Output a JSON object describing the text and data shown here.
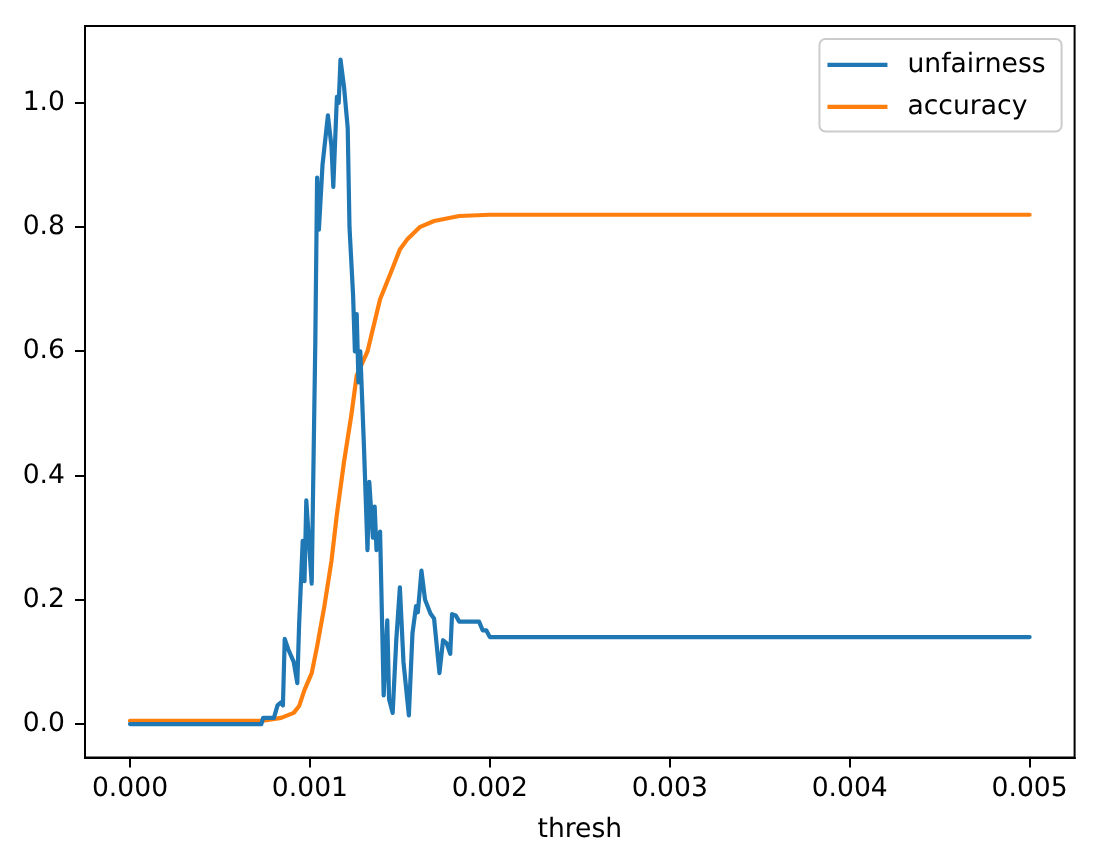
{
  "chart_data": {
    "type": "line",
    "xlabel": "thresh",
    "xlim": [
      -0.00025,
      0.00525
    ],
    "xticks": [
      {
        "value": 0,
        "label": "0.000"
      },
      {
        "value": 0.001,
        "label": "0.001"
      },
      {
        "value": 0.002,
        "label": "0.002"
      },
      {
        "value": 0.003,
        "label": "0.003"
      },
      {
        "value": 0.004,
        "label": "0.004"
      },
      {
        "value": 0.005,
        "label": "0.005"
      }
    ],
    "ylim": [
      -0.054,
      1.124
    ],
    "yticks": [
      {
        "value": 0,
        "label": "0.0"
      },
      0.2,
      0.4,
      0.6,
      0.8,
      {
        "value": 1,
        "label": "1.0"
      }
    ],
    "grid": false,
    "legend": "top right",
    "series": [
      {
        "name": "unfairness",
        "color": "#1f77b4",
        "x": [
          0,
          0.00073,
          0.00074,
          0.0008,
          0.00082,
          0.00084,
          0.00085,
          0.00086,
          0.00088,
          0.00091,
          0.00093,
          0.00094,
          0.00096,
          0.00097,
          0.00098,
          0.001,
          0.00101,
          0.00103,
          0.00104,
          0.00105,
          0.00107,
          0.0011,
          0.00112,
          0.00113,
          0.00115,
          0.00116,
          0.00117,
          0.00119,
          0.00121,
          0.00122,
          0.00124,
          0.00125,
          0.00126,
          0.00127,
          0.00128,
          0.0013,
          0.00132,
          0.00133,
          0.00135,
          0.00136,
          0.00137,
          0.00139,
          0.00141,
          0.00143,
          0.00144,
          0.00146,
          0.00148,
          0.0015,
          0.00152,
          0.00155,
          0.00157,
          0.00159,
          0.0016,
          0.00162,
          0.00164,
          0.00167,
          0.00169,
          0.00172,
          0.00174,
          0.00176,
          0.00178,
          0.00179,
          0.00181,
          0.00183,
          0.00194,
          0.00196,
          0.00198,
          0.002,
          0.005
        ],
        "values": [
          0,
          0,
          0.01,
          0.01,
          0.03,
          0.035,
          0.03,
          0.137,
          0.12,
          0.1,
          0.066,
          0.16,
          0.295,
          0.23,
          0.36,
          0.27,
          0.226,
          0.615,
          0.88,
          0.796,
          0.9,
          0.98,
          0.93,
          0.865,
          1.01,
          1.0,
          1.07,
          1.025,
          0.96,
          0.8,
          0.69,
          0.6,
          0.66,
          0.55,
          0.6,
          0.45,
          0.28,
          0.39,
          0.3,
          0.35,
          0.28,
          0.31,
          0.046,
          0.167,
          0.04,
          0.018,
          0.135,
          0.22,
          0.1,
          0.014,
          0.146,
          0.19,
          0.18,
          0.247,
          0.2,
          0.178,
          0.17,
          0.082,
          0.135,
          0.13,
          0.113,
          0.177,
          0.175,
          0.165,
          0.165,
          0.151,
          0.151,
          0.14,
          0.14
        ]
      },
      {
        "name": "accuracy",
        "color": "#ff7f0e",
        "x": [
          0,
          0.00073,
          0.00084,
          0.00091,
          0.00094,
          0.00097,
          0.00101,
          0.00104,
          0.00108,
          0.00112,
          0.00115,
          0.00119,
          0.00123,
          0.00126,
          0.00132,
          0.00135,
          0.00139,
          0.00145,
          0.0015,
          0.00154,
          0.00161,
          0.00169,
          0.00183,
          0.002,
          0.005
        ],
        "values": [
          0.005,
          0.005,
          0.01,
          0.018,
          0.029,
          0.055,
          0.082,
          0.125,
          0.189,
          0.263,
          0.338,
          0.423,
          0.497,
          0.561,
          0.6,
          0.636,
          0.684,
          0.727,
          0.764,
          0.78,
          0.8,
          0.81,
          0.818,
          0.82,
          0.82
        ]
      }
    ]
  }
}
